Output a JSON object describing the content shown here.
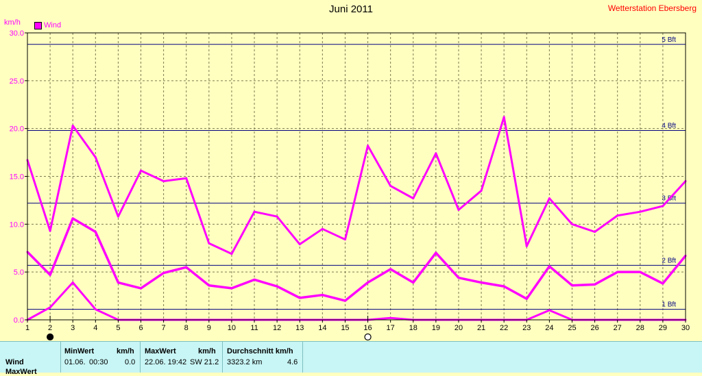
{
  "title": "Juni 2011",
  "station": "Wetterstation Ebersberg",
  "unit": "km/h",
  "legend_label": "Wind",
  "colors": {
    "series": "#ff00ff",
    "bft_line": "#000080",
    "grid": "#7a7a50",
    "background": "#ffffc0",
    "panel": "#c8f5f5",
    "station": "#ff0000"
  },
  "chart_data": {
    "type": "line",
    "title": "Juni 2011",
    "ylabel": "km/h",
    "ylim": [
      0,
      30
    ],
    "x": [
      1,
      2,
      3,
      4,
      5,
      6,
      7,
      8,
      9,
      10,
      11,
      12,
      13,
      14,
      15,
      16,
      17,
      18,
      19,
      20,
      21,
      22,
      23,
      24,
      25,
      26,
      27,
      28,
      29,
      30
    ],
    "y_ticks": [
      "0.0",
      "5.0",
      "10.0",
      "15.0",
      "20.0",
      "25.0",
      "30.0"
    ],
    "series": [
      {
        "name": "Wind",
        "values": [
          16.7,
          9.3,
          20.3,
          17.0,
          10.8,
          15.6,
          14.5,
          14.8,
          8.0,
          6.9,
          11.3,
          10.8,
          7.9,
          9.5,
          8.4,
          18.2,
          14.0,
          12.7,
          17.4,
          11.5,
          13.5,
          21.2,
          7.7,
          12.7,
          10.0,
          9.2,
          10.9,
          11.3,
          11.9,
          14.5
        ]
      },
      {
        "values": [
          7.1,
          4.7,
          10.6,
          9.2,
          3.9,
          3.3,
          4.9,
          5.5,
          3.6,
          3.3,
          4.2,
          3.5,
          2.3,
          2.6,
          2.0,
          3.9,
          5.3,
          3.9,
          7.0,
          4.4,
          3.9,
          3.5,
          2.2,
          5.6,
          3.6,
          3.7,
          5.0,
          5.0,
          3.8,
          6.7
        ]
      },
      {
        "values": [
          0.0,
          1.3,
          3.9,
          1.1,
          0.0,
          0.0,
          0.0,
          0.0,
          0.0,
          0.0,
          0.0,
          0.0,
          0.0,
          0.0,
          0.0,
          0.0,
          0.2,
          0.0,
          0.0,
          0.0,
          0.0,
          0.0,
          0.0,
          1.0,
          0.0,
          0.0,
          0.0,
          0.0,
          0.0,
          0.0
        ]
      }
    ],
    "beaufort_lines": [
      {
        "label": "1 Bft",
        "value": 1.1
      },
      {
        "label": "2 Bft",
        "value": 5.7
      },
      {
        "label": "3 Bft",
        "value": 12.2
      },
      {
        "label": "4 Bft",
        "value": 19.8
      },
      {
        "label": "5 Bft",
        "value": 28.8
      }
    ],
    "markers": [
      {
        "day": 2,
        "style": "filled"
      },
      {
        "day": 16,
        "style": "hollow"
      }
    ],
    "grid": true,
    "legend_position": "top-left"
  },
  "stats": {
    "row_label": "Wind",
    "row2_label": "MaxWert",
    "min_header": "MinWert",
    "min_unit": "km/h",
    "min_date": "01.06.",
    "min_time": "00:30",
    "min_value": "0.0",
    "max_header": "MaxWert",
    "max_unit": "km/h",
    "max_datetime": "22.06. 19:42",
    "max_value": "SW 21.2",
    "avg_header": "Durchschnitt km/h",
    "avg_distance": "3323.2 km",
    "avg_value": "4.6"
  }
}
